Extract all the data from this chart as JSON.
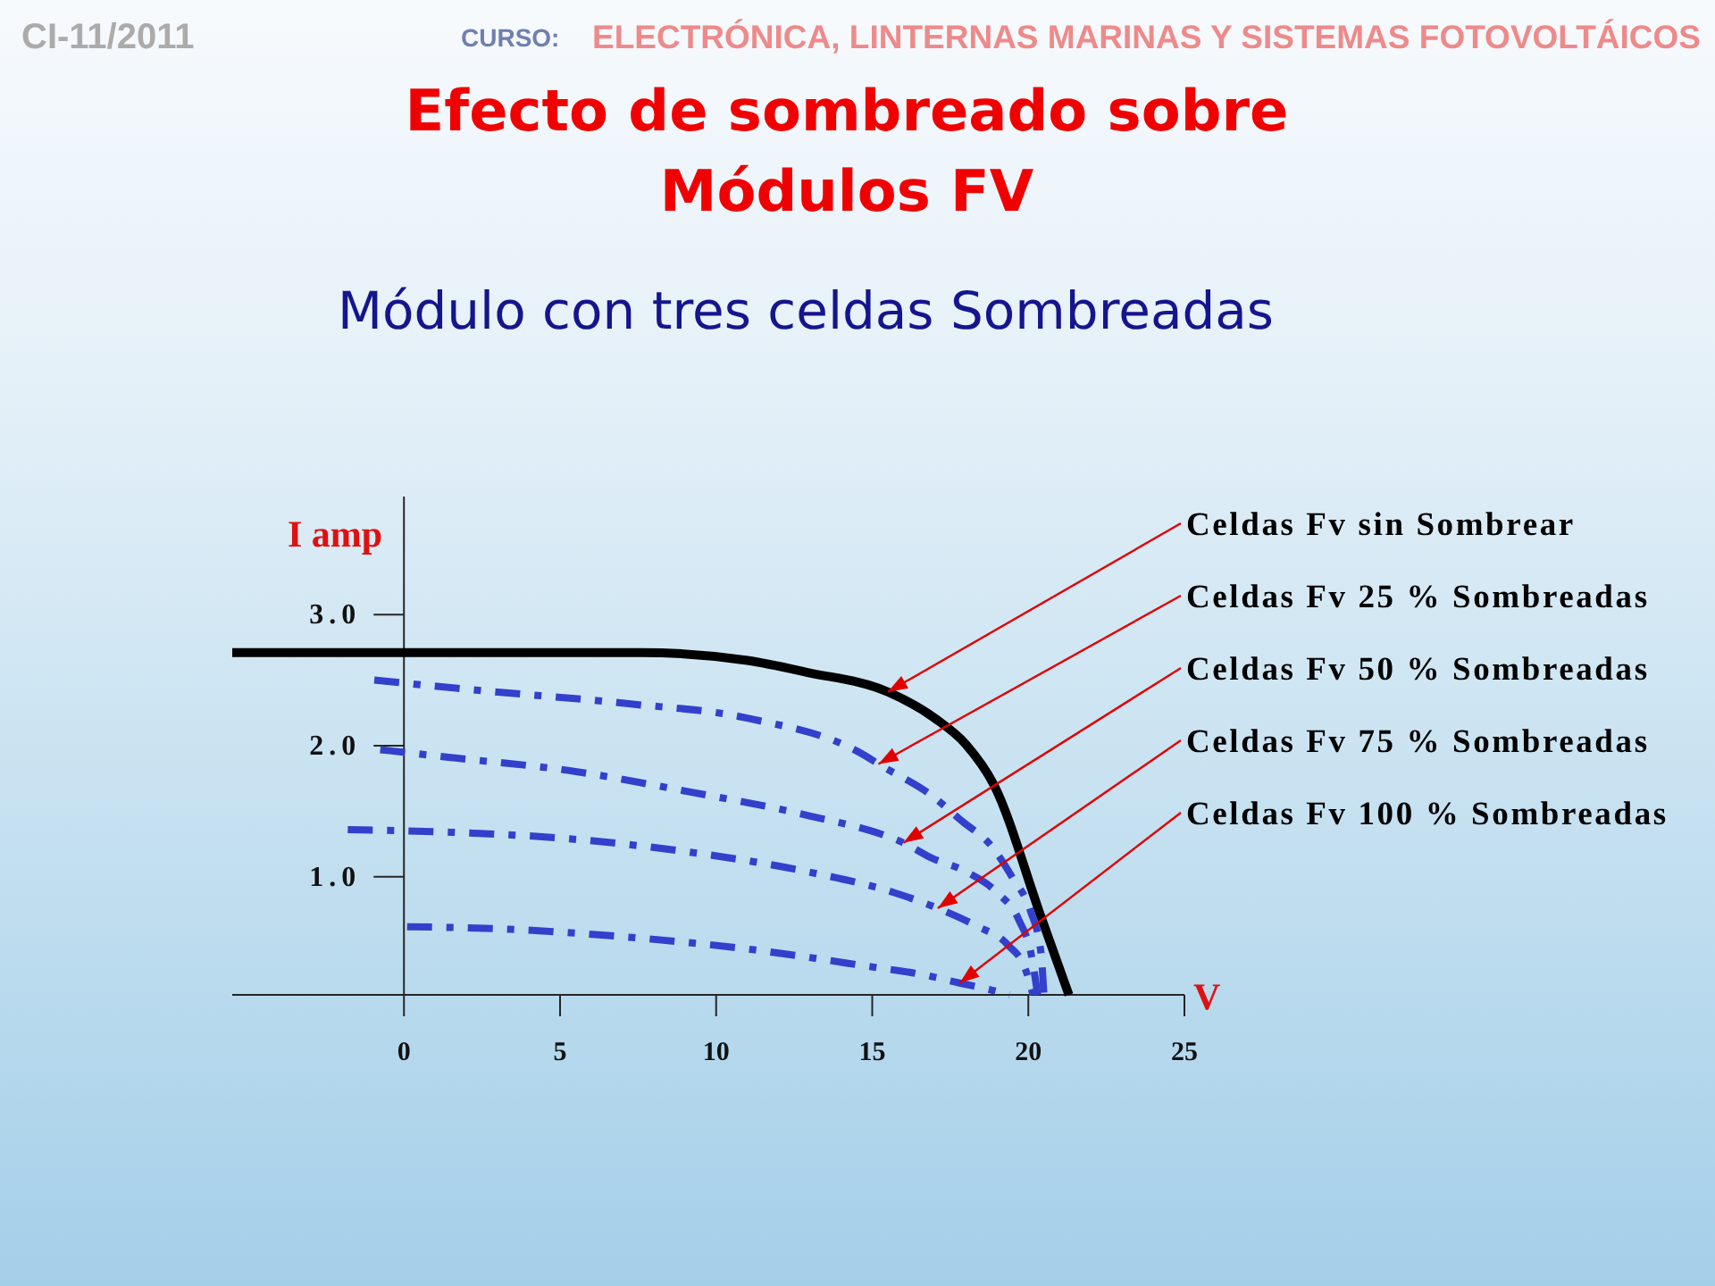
{
  "chart_data": {
    "type": "line",
    "title": "Efecto de sombreado sobre\nMódulos FV",
    "subtitle": "Módulo con tres celdas Sombreadas",
    "xlabel": "V",
    "ylabel": "I amp",
    "annotations": [
      "CI-11/2011",
      "CURSO:",
      "ELECTRÓNICA, LINTERNAS MARINAS Y SISTEMAS FOTOVOLTÁICOS",
      {
        "text": "Celdas Fv sin Sombrear",
        "x": 15.5,
        "y": 2.41
      },
      {
        "text": "Celdas Fv 25 % Sombreadas",
        "x": 15.2,
        "y": 1.86
      },
      {
        "text": "Celdas Fv 50 % Sombreadas",
        "x": 16.0,
        "y": 1.26
      },
      {
        "text": "Celdas Fv 75 % Sombreadas",
        "x": 17.1,
        "y": 0.76
      },
      {
        "text": "Celdas Fv 100 % Sombreadas",
        "x": 17.8,
        "y": 0.19
      }
    ],
    "xlim": [
      -5.5,
      25
    ],
    "xticks": [
      0,
      5,
      10,
      15,
      20,
      25
    ],
    "ylim": [
      0.1,
      3.9
    ],
    "yticks": [
      {
        "value": 1,
        "label": "1.0"
      },
      {
        "value": 2,
        "label": "2.0"
      },
      {
        "value": 3,
        "label": "3.0"
      }
    ],
    "series": [
      {
        "color": "#000000",
        "line_style": "solid",
        "x": [
          -5.5,
          7.6,
          11,
          12.9,
          15.5,
          17,
          18,
          18.9,
          20.4,
          21.3
        ],
        "values": [
          2.71,
          2.71,
          2.65,
          2.56,
          2.41,
          2.21,
          2.01,
          1.7,
          0.7,
          0.1
        ]
      },
      {
        "color": "#3340cc",
        "line_style": "dashed",
        "x": [
          -0.95,
          2.5,
          7.2,
          11,
          14.8,
          15.2,
          16.85,
          17.9,
          18.8,
          19.5,
          20.07,
          20.4,
          20.5
        ],
        "values": [
          2.5,
          2.42,
          2.32,
          2.21,
          1.92,
          1.86,
          1.63,
          1.42,
          1.24,
          0.99,
          0.74,
          0.43,
          0.1
        ]
      },
      {
        "color": "#3340cc",
        "line_style": "dashed",
        "x": [
          -0.76,
          1.5,
          5.3,
          9.1,
          12.9,
          15.7,
          16.0,
          16.85,
          18.0,
          19.0,
          19.7,
          20.1,
          20.3
        ],
        "values": [
          1.97,
          1.91,
          1.81,
          1.65,
          1.47,
          1.29,
          1.26,
          1.15,
          1.04,
          0.88,
          0.67,
          0.4,
          0.1
        ]
      },
      {
        "color": "#3340cc",
        "line_style": "dashed",
        "x": [
          -1.8,
          1.5,
          5.3,
          9.1,
          12.9,
          15.7,
          17.1,
          18.3,
          19.35,
          19.9,
          20.15
        ],
        "values": [
          1.36,
          1.34,
          1.29,
          1.19,
          1.04,
          0.88,
          0.76,
          0.63,
          0.48,
          0.3,
          0.1
        ]
      },
      {
        "color": "#3340cc",
        "line_style": "dashed",
        "x": [
          0.1,
          3.4,
          7.2,
          11,
          14.8,
          16.7,
          17.8,
          18,
          19.1,
          19.4
        ],
        "values": [
          0.62,
          0.6,
          0.54,
          0.45,
          0.32,
          0.25,
          0.19,
          0.18,
          0.12,
          0.1
        ]
      }
    ]
  }
}
